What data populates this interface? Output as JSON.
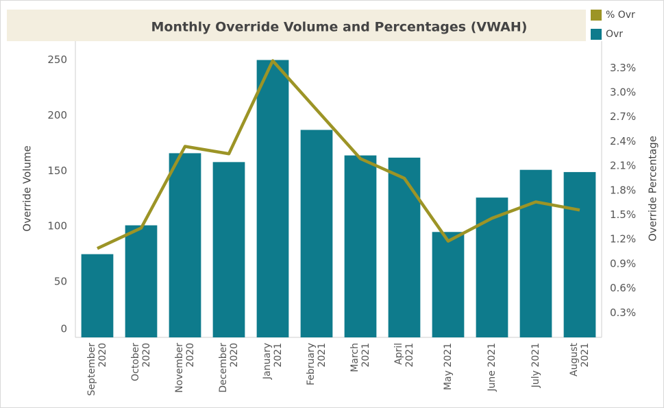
{
  "chart_data": {
    "type": "bar_line",
    "title": "Monthly Override Volume and Percentages (VWAH)",
    "ylabel": "Override Volume",
    "y2label": "Override Percentage",
    "categories": [
      "September 2020",
      "October 2020",
      "November 2020",
      "December 2020",
      "January 2021",
      "February 2021",
      "March 2021",
      "April 2021",
      "May 2021",
      "June 2021",
      "July 2021",
      "August 2021"
    ],
    "series": [
      {
        "name": "Ovr",
        "type": "bar",
        "color": "#0e7b8c",
        "values": [
          75,
          101,
          166,
          158,
          250,
          187,
          164,
          162,
          95,
          126,
          151,
          149
        ]
      },
      {
        "name": "% Ovr",
        "type": "line",
        "axis": "y2",
        "color": "#9c9426",
        "values": [
          1.09,
          1.34,
          2.34,
          2.25,
          3.39,
          2.79,
          2.19,
          1.95,
          1.18,
          1.46,
          1.66,
          1.56
        ]
      }
    ],
    "legend_order": [
      1,
      0
    ],
    "ylim": [
      0,
      267
    ],
    "yticks": [
      0,
      50,
      100,
      150,
      200,
      250
    ],
    "y2lim": [
      0,
      3.63
    ],
    "y2ticks": [
      {
        "value": 0.3,
        "label": "0.3%"
      },
      {
        "value": 0.6,
        "label": "0.6%"
      },
      {
        "value": 0.9,
        "label": "0.9%"
      },
      {
        "value": 1.2,
        "label": "1.2%"
      },
      {
        "value": 1.5,
        "label": "1.5%"
      },
      {
        "value": 1.8,
        "label": "1.8%"
      },
      {
        "value": 2.1,
        "label": "2.1%"
      },
      {
        "value": 2.4,
        "label": "2.4%"
      },
      {
        "value": 2.7,
        "label": "2.7%"
      },
      {
        "value": 3.0,
        "label": "3.0%"
      },
      {
        "value": 3.3,
        "label": "3.3%"
      }
    ],
    "grid": false
  }
}
